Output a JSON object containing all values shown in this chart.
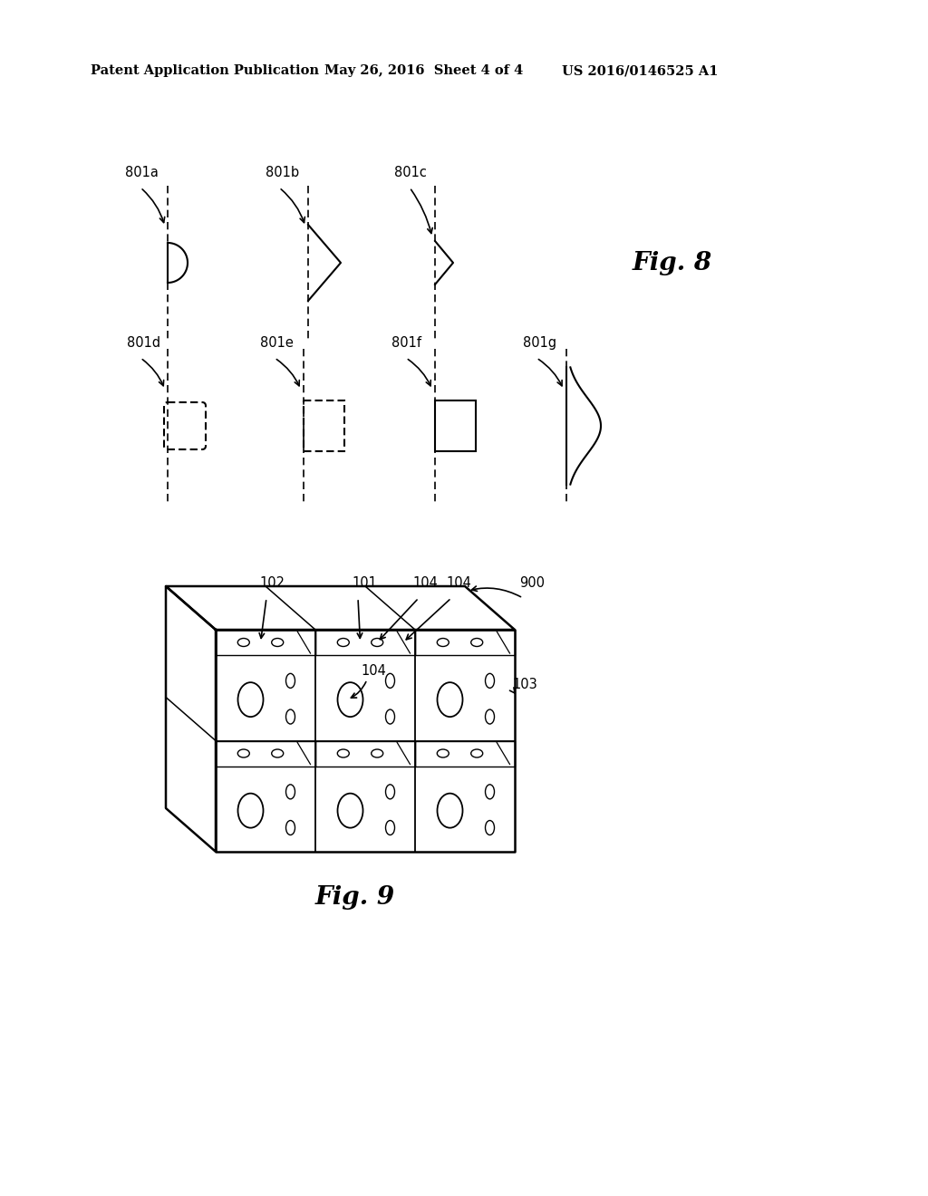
{
  "header_left": "Patent Application Publication",
  "header_mid": "May 26, 2016  Sheet 4 of 4",
  "header_right": "US 2016/0146525 A1",
  "fig8_label": "Fig. 8",
  "fig9_label": "Fig. 9",
  "background": "#ffffff",
  "line_color": "#000000"
}
